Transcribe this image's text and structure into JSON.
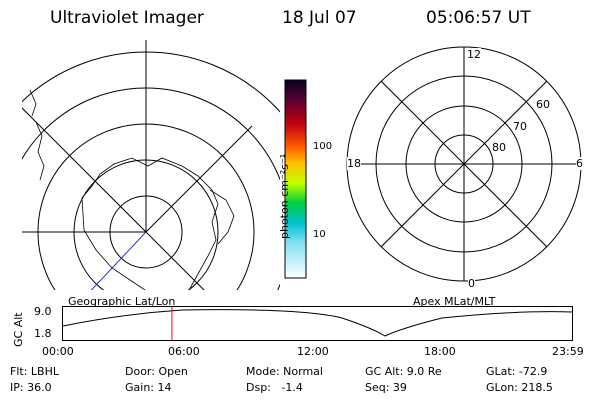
{
  "header": {
    "title": "Ultraviolet Imager",
    "date": "18 Jul 07",
    "time": "05:06:57 UT"
  },
  "colorbar": {
    "unit_label": "photon cm⁻²s⁻¹",
    "ticks": [
      "100",
      "10"
    ]
  },
  "left_map": {
    "caption": "Geographic Lat/Lon"
  },
  "right_map": {
    "caption": "Apex MLat/MLT",
    "mlt_labels": {
      "top": "12",
      "right": "6",
      "bottom": "0",
      "left": "18"
    },
    "mlat_labels": [
      "60",
      "70",
      "80"
    ]
  },
  "altitude_plot": {
    "ylabel": "GC Alt",
    "ymax_label": "9.0",
    "ymin_label": "1.8",
    "x_ticks": [
      "00:00",
      "06:00",
      "12:00",
      "18:00",
      "23:59"
    ],
    "current_time_fraction": 0.214,
    "marker_color": "#ff0000"
  },
  "info": {
    "flt": "Flt: LBHL",
    "ip": "IP: 36.0",
    "door": "Door: Open",
    "gain": "Gain: 14",
    "mode": "Mode: Normal",
    "dsp": "Dsp:   -1.4",
    "gc_alt": "GC Alt: 9.0 Re",
    "seq": "Seq: 39",
    "glat": "GLat: -72.9",
    "glon": "GLon: 218.5"
  }
}
